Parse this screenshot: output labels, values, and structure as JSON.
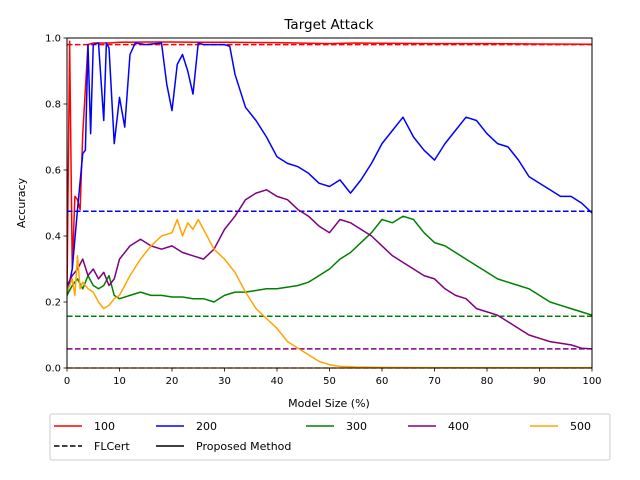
{
  "chart_data": {
    "type": "line",
    "title": "Target Attack",
    "xlabel": "Model Size (%)",
    "ylabel": "Accuracy",
    "xlim": [
      0,
      100
    ],
    "ylim": [
      0,
      1.0
    ],
    "xticks": [
      0,
      10,
      20,
      30,
      40,
      50,
      60,
      70,
      80,
      90,
      100
    ],
    "yticks": [
      0.0,
      0.2,
      0.4,
      0.6,
      0.8,
      1.0
    ],
    "xtick_labels": [
      "0",
      "10",
      "20",
      "30",
      "40",
      "50",
      "60",
      "70",
      "80",
      "90",
      "100"
    ],
    "ytick_labels": [
      "0.0",
      "0.2",
      "0.4",
      "0.6",
      "0.8",
      "1.0"
    ],
    "grid": false,
    "legend_position": "below plot",
    "legend": [
      {
        "label": "100",
        "color": "#ff0000",
        "style": "solid"
      },
      {
        "label": "FLCert",
        "color": "#000000",
        "style": "dashed"
      },
      {
        "label": "200",
        "color": "#0000ff",
        "style": "solid"
      },
      {
        "label": "Proposed Method",
        "color": "#000000",
        "style": "solid"
      },
      {
        "label": "300",
        "color": "#008000",
        "style": "solid"
      },
      {
        "label": "400",
        "color": "#800080",
        "style": "solid"
      },
      {
        "label": "500",
        "color": "#ffa500",
        "style": "solid"
      }
    ],
    "series": [
      {
        "name": "100",
        "color": "#ff0000",
        "method": "Proposed Method",
        "x": [
          0,
          0.5,
          1,
          1.5,
          2,
          2.5,
          3,
          4,
          5,
          6,
          8,
          10,
          15,
          20,
          25,
          30,
          40,
          50,
          55,
          60,
          70,
          80,
          90,
          100
        ],
        "y": [
          0.22,
          0.99,
          0.3,
          0.52,
          0.51,
          0.48,
          0.71,
          0.98,
          0.985,
          0.985,
          0.985,
          0.987,
          0.988,
          0.988,
          0.987,
          0.987,
          0.986,
          0.983,
          0.985,
          0.984,
          0.983,
          0.983,
          0.982,
          0.981
        ]
      },
      {
        "name": "100",
        "color": "#ff0000",
        "method": "FLCert",
        "x": [
          0,
          100
        ],
        "y": [
          0.98,
          0.98
        ]
      },
      {
        "name": "200",
        "color": "#0000ff",
        "method": "Proposed Method",
        "x": [
          0,
          1,
          2,
          3,
          3.5,
          4,
          4.5,
          5,
          6,
          7,
          7.5,
          8,
          9,
          10,
          11,
          12,
          13,
          15,
          18,
          19,
          20,
          21,
          22,
          23,
          24,
          25,
          26,
          28,
          30,
          31,
          32,
          34,
          36,
          38,
          40,
          42,
          44,
          46,
          48,
          50,
          52,
          54,
          56,
          58,
          60,
          62,
          64,
          66,
          68,
          70,
          72,
          74,
          76,
          78,
          80,
          82,
          84,
          86,
          88,
          90,
          92,
          94,
          96,
          98,
          100
        ],
        "y": [
          0.22,
          0.3,
          0.48,
          0.65,
          0.66,
          0.98,
          0.71,
          0.98,
          0.985,
          0.75,
          0.985,
          0.97,
          0.68,
          0.82,
          0.73,
          0.95,
          0.985,
          0.98,
          0.985,
          0.86,
          0.78,
          0.92,
          0.95,
          0.9,
          0.83,
          0.985,
          0.98,
          0.98,
          0.98,
          0.975,
          0.89,
          0.79,
          0.75,
          0.7,
          0.64,
          0.62,
          0.61,
          0.59,
          0.56,
          0.55,
          0.57,
          0.53,
          0.57,
          0.62,
          0.68,
          0.72,
          0.76,
          0.7,
          0.66,
          0.63,
          0.68,
          0.72,
          0.76,
          0.75,
          0.71,
          0.68,
          0.67,
          0.63,
          0.58,
          0.56,
          0.54,
          0.52,
          0.52,
          0.5,
          0.47
        ]
      },
      {
        "name": "200",
        "color": "#0000ff",
        "method": "FLCert",
        "x": [
          0,
          100
        ],
        "y": [
          0.475,
          0.475
        ]
      },
      {
        "name": "300",
        "color": "#008000",
        "method": "Proposed Method",
        "x": [
          0,
          1,
          2,
          3,
          4,
          5,
          6,
          7,
          8,
          9,
          10,
          12,
          14,
          16,
          18,
          20,
          22,
          24,
          26,
          28,
          30,
          32,
          34,
          36,
          38,
          40,
          42,
          44,
          46,
          48,
          50,
          52,
          54,
          56,
          58,
          60,
          62,
          64,
          66,
          68,
          70,
          72,
          74,
          76,
          78,
          80,
          82,
          84,
          86,
          88,
          90,
          92,
          94,
          96,
          98,
          100
        ],
        "y": [
          0.22,
          0.25,
          0.27,
          0.24,
          0.28,
          0.25,
          0.24,
          0.25,
          0.28,
          0.22,
          0.21,
          0.22,
          0.23,
          0.22,
          0.22,
          0.215,
          0.215,
          0.21,
          0.21,
          0.2,
          0.22,
          0.23,
          0.23,
          0.235,
          0.24,
          0.24,
          0.245,
          0.25,
          0.26,
          0.28,
          0.3,
          0.33,
          0.35,
          0.38,
          0.41,
          0.45,
          0.44,
          0.46,
          0.45,
          0.41,
          0.38,
          0.37,
          0.35,
          0.33,
          0.31,
          0.29,
          0.27,
          0.26,
          0.25,
          0.24,
          0.22,
          0.2,
          0.19,
          0.18,
          0.17,
          0.16
        ]
      },
      {
        "name": "300",
        "color": "#008000",
        "method": "FLCert",
        "x": [
          0,
          100
        ],
        "y": [
          0.157,
          0.157
        ]
      },
      {
        "name": "400",
        "color": "#800080",
        "method": "Proposed Method",
        "x": [
          0,
          1,
          2,
          3,
          4,
          5,
          6,
          7,
          8,
          9,
          10,
          12,
          14,
          16,
          18,
          20,
          22,
          24,
          26,
          28,
          30,
          32,
          34,
          36,
          38,
          40,
          42,
          44,
          46,
          48,
          50,
          52,
          54,
          56,
          58,
          60,
          62,
          64,
          66,
          68,
          70,
          72,
          74,
          76,
          78,
          80,
          82,
          84,
          86,
          88,
          90,
          92,
          94,
          96,
          98,
          100
        ],
        "y": [
          0.25,
          0.28,
          0.3,
          0.33,
          0.28,
          0.3,
          0.27,
          0.29,
          0.25,
          0.27,
          0.33,
          0.37,
          0.39,
          0.37,
          0.36,
          0.37,
          0.35,
          0.34,
          0.33,
          0.36,
          0.42,
          0.46,
          0.51,
          0.53,
          0.54,
          0.52,
          0.51,
          0.48,
          0.46,
          0.43,
          0.41,
          0.45,
          0.44,
          0.42,
          0.4,
          0.37,
          0.34,
          0.32,
          0.3,
          0.28,
          0.27,
          0.24,
          0.22,
          0.21,
          0.18,
          0.17,
          0.16,
          0.14,
          0.12,
          0.1,
          0.09,
          0.08,
          0.075,
          0.07,
          0.06,
          0.058
        ]
      },
      {
        "name": "400",
        "color": "#800080",
        "method": "FLCert",
        "x": [
          0,
          100
        ],
        "y": [
          0.058,
          0.058
        ]
      },
      {
        "name": "500",
        "color": "#ffa500",
        "method": "Proposed Method",
        "x": [
          0,
          1,
          1.5,
          2,
          2.5,
          3,
          4,
          5,
          6,
          7,
          8,
          9,
          10,
          12,
          14,
          16,
          18,
          20,
          21,
          22,
          23,
          24,
          25,
          26,
          28,
          30,
          32,
          34,
          36,
          38,
          40,
          42,
          44,
          46,
          48,
          50,
          52,
          55,
          60,
          70,
          80,
          90,
          100
        ],
        "y": [
          0.23,
          0.27,
          0.22,
          0.34,
          0.24,
          0.26,
          0.24,
          0.23,
          0.2,
          0.18,
          0.19,
          0.21,
          0.22,
          0.28,
          0.33,
          0.37,
          0.4,
          0.41,
          0.45,
          0.4,
          0.44,
          0.42,
          0.45,
          0.42,
          0.36,
          0.33,
          0.29,
          0.23,
          0.18,
          0.15,
          0.12,
          0.08,
          0.06,
          0.04,
          0.02,
          0.01,
          0.005,
          0.003,
          0.002,
          0.001,
          0.001,
          0.001,
          0.001
        ]
      },
      {
        "name": "500",
        "color": "#ffa500",
        "method": "FLCert",
        "x": [
          0,
          100
        ],
        "y": [
          0.0,
          0.0
        ]
      }
    ]
  }
}
